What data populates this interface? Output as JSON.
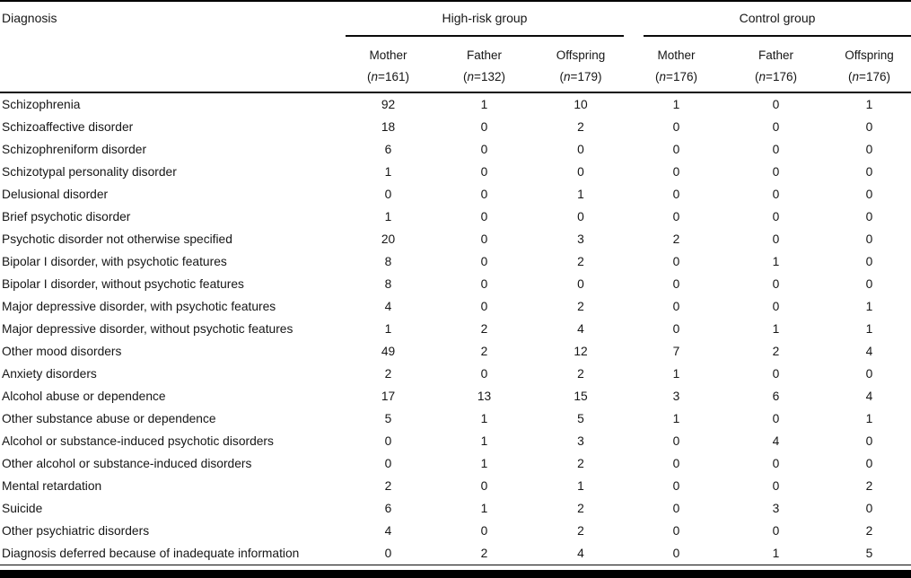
{
  "table": {
    "title_col": "Diagnosis",
    "n_open": "(",
    "n_var": "n",
    "n_eq": "=",
    "n_close": ")",
    "groups": [
      {
        "label": "High-risk group"
      },
      {
        "label": "Control group"
      }
    ],
    "columns": [
      {
        "name": "Mother",
        "n_value": "161"
      },
      {
        "name": "Father",
        "n_value": "132"
      },
      {
        "name": "Offspring",
        "n_value": "179"
      },
      {
        "name": "Mother",
        "n_value": "176"
      },
      {
        "name": "Father",
        "n_value": "176"
      },
      {
        "name": "Offspring",
        "n_value": "176"
      }
    ],
    "rows": [
      {
        "label": "Schizophrenia",
        "values": [
          "92",
          "1",
          "10",
          "1",
          "0",
          "1"
        ]
      },
      {
        "label": "Schizoaffective disorder",
        "values": [
          "18",
          "0",
          "2",
          "0",
          "0",
          "0"
        ]
      },
      {
        "label": "Schizophreniform disorder",
        "values": [
          "6",
          "0",
          "0",
          "0",
          "0",
          "0"
        ]
      },
      {
        "label": "Schizotypal personality disorder",
        "values": [
          "1",
          "0",
          "0",
          "0",
          "0",
          "0"
        ]
      },
      {
        "label": "Delusional disorder",
        "values": [
          "0",
          "0",
          "1",
          "0",
          "0",
          "0"
        ]
      },
      {
        "label": "Brief psychotic disorder",
        "values": [
          "1",
          "0",
          "0",
          "0",
          "0",
          "0"
        ]
      },
      {
        "label": "Psychotic disorder not otherwise specified",
        "values": [
          "20",
          "0",
          "3",
          "2",
          "0",
          "0"
        ]
      },
      {
        "label": "Bipolar I disorder, with psychotic features",
        "values": [
          "8",
          "0",
          "2",
          "0",
          "1",
          "0"
        ]
      },
      {
        "label": "Bipolar I disorder, without psychotic features",
        "values": [
          "8",
          "0",
          "0",
          "0",
          "0",
          "0"
        ]
      },
      {
        "label": "Major depressive disorder, with psychotic features",
        "values": [
          "4",
          "0",
          "2",
          "0",
          "0",
          "1"
        ]
      },
      {
        "label": "Major depressive disorder, without psychotic features",
        "values": [
          "1",
          "2",
          "4",
          "0",
          "1",
          "1"
        ]
      },
      {
        "label": "Other mood disorders",
        "values": [
          "49",
          "2",
          "12",
          "7",
          "2",
          "4"
        ]
      },
      {
        "label": "Anxiety disorders",
        "values": [
          "2",
          "0",
          "2",
          "1",
          "0",
          "0"
        ]
      },
      {
        "label": "Alcohol abuse or dependence",
        "values": [
          "17",
          "13",
          "15",
          "3",
          "6",
          "4"
        ]
      },
      {
        "label": "Other substance abuse or dependence",
        "values": [
          "5",
          "1",
          "5",
          "1",
          "0",
          "1"
        ]
      },
      {
        "label": "Alcohol or substance-induced psychotic disorders",
        "values": [
          "0",
          "1",
          "3",
          "0",
          "4",
          "0"
        ]
      },
      {
        "label": "Other alcohol or substance-induced disorders",
        "values": [
          "0",
          "1",
          "2",
          "0",
          "0",
          "0"
        ]
      },
      {
        "label": "Mental retardation",
        "values": [
          "2",
          "0",
          "1",
          "0",
          "0",
          "2"
        ]
      },
      {
        "label": "Suicide",
        "values": [
          "6",
          "1",
          "2",
          "0",
          "3",
          "0"
        ]
      },
      {
        "label": "Other psychiatric disorders",
        "values": [
          "4",
          "0",
          "2",
          "0",
          "0",
          "2"
        ]
      },
      {
        "label": "Diagnosis deferred because of inadequate information",
        "values": [
          "0",
          "2",
          "4",
          "0",
          "1",
          "5"
        ]
      }
    ]
  }
}
